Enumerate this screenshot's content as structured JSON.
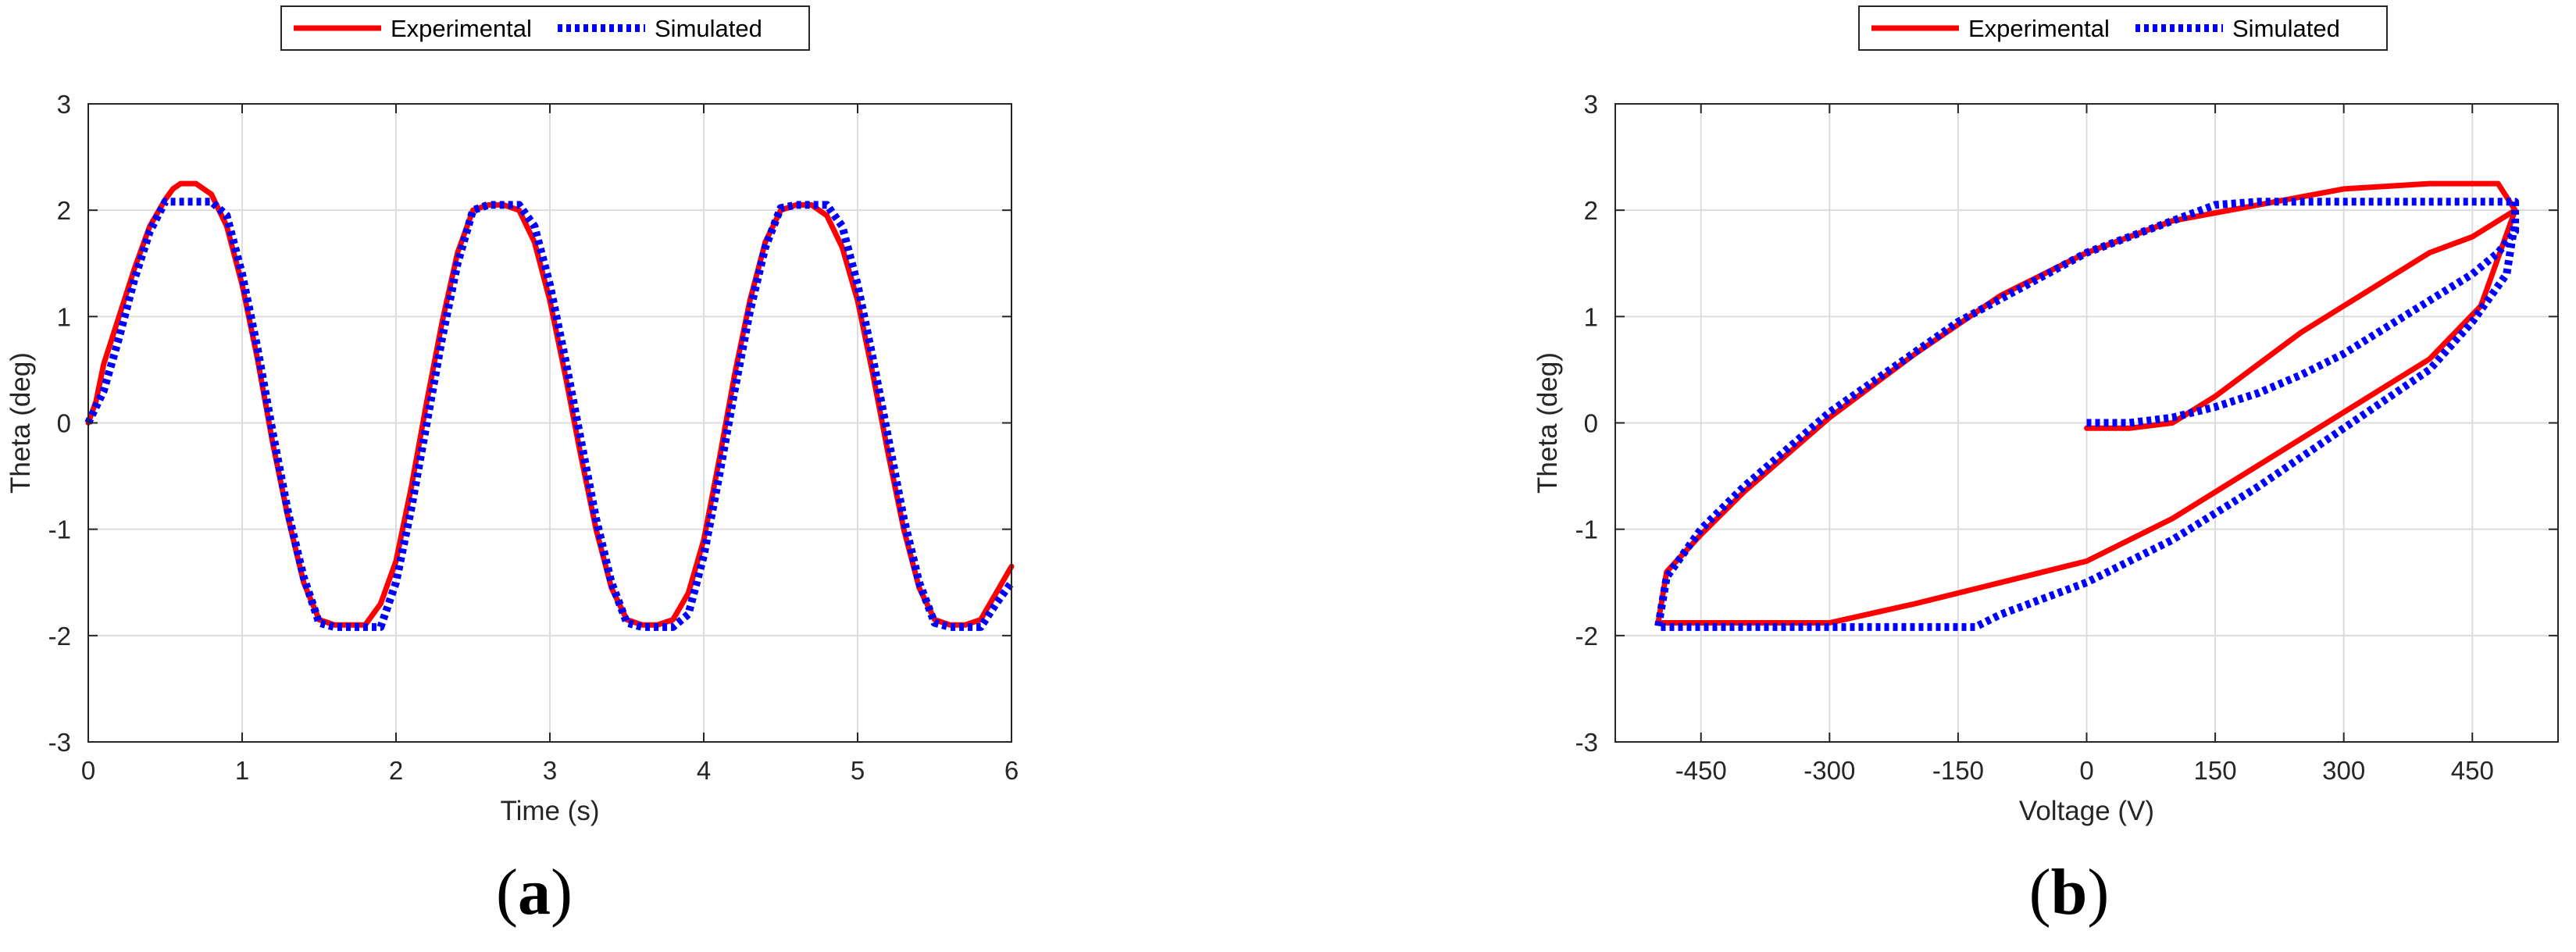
{
  "chart_data": [
    {
      "type": "line",
      "panel_label": {
        "open": "(",
        "letter": "a",
        "close": ")"
      },
      "xlabel": "Time (s)",
      "ylabel": "Theta (deg)",
      "xlim": [
        0,
        6
      ],
      "ylim": [
        -3,
        3
      ],
      "xticks": [
        0,
        1,
        2,
        3,
        4,
        5,
        6
      ],
      "yticks": [
        -3,
        -2,
        -1,
        0,
        1,
        2,
        3
      ],
      "grid": true,
      "legend": "top-center, outside",
      "series": [
        {
          "name": "Experimental",
          "color": "#ff0000",
          "style": "solid",
          "x": [
            0,
            0.05,
            0.1,
            0.2,
            0.3,
            0.4,
            0.5,
            0.55,
            0.6,
            0.7,
            0.8,
            0.9,
            1.0,
            1.1,
            1.2,
            1.3,
            1.4,
            1.5,
            1.6,
            1.7,
            1.8,
            1.9,
            2.0,
            2.1,
            2.2,
            2.3,
            2.4,
            2.5,
            2.6,
            2.7,
            2.8,
            2.9,
            3.0,
            3.1,
            3.2,
            3.3,
            3.4,
            3.5,
            3.6,
            3.7,
            3.8,
            3.9,
            4.0,
            4.1,
            4.2,
            4.3,
            4.4,
            4.5,
            4.6,
            4.7,
            4.8,
            4.9,
            5.0,
            5.1,
            5.2,
            5.3,
            5.4,
            5.5,
            5.6,
            5.7,
            5.8,
            5.9,
            6.0
          ],
          "y": [
            0,
            0.2,
            0.55,
            1.0,
            1.45,
            1.85,
            2.1,
            2.2,
            2.25,
            2.25,
            2.15,
            1.85,
            1.3,
            0.6,
            -0.2,
            -0.9,
            -1.5,
            -1.85,
            -1.9,
            -1.9,
            -1.9,
            -1.7,
            -1.3,
            -0.6,
            0.2,
            0.95,
            1.6,
            2.0,
            2.05,
            2.05,
            2.0,
            1.7,
            1.15,
            0.45,
            -0.3,
            -1.0,
            -1.55,
            -1.85,
            -1.9,
            -1.9,
            -1.85,
            -1.6,
            -1.1,
            -0.35,
            0.45,
            1.15,
            1.7,
            2.0,
            2.05,
            2.05,
            1.95,
            1.65,
            1.15,
            0.45,
            -0.3,
            -1.0,
            -1.55,
            -1.85,
            -1.9,
            -1.9,
            -1.85,
            -1.6,
            -1.35
          ]
        },
        {
          "name": "Simulated",
          "color": "#0000ff",
          "style": "dotted",
          "x": [
            0,
            0.1,
            0.2,
            0.3,
            0.4,
            0.5,
            0.6,
            0.7,
            0.8,
            0.9,
            1.0,
            1.1,
            1.2,
            1.3,
            1.4,
            1.5,
            1.6,
            1.7,
            1.8,
            1.9,
            2.0,
            2.1,
            2.2,
            2.3,
            2.4,
            2.5,
            2.6,
            2.7,
            2.8,
            2.9,
            3.0,
            3.1,
            3.2,
            3.3,
            3.4,
            3.5,
            3.6,
            3.7,
            3.8,
            3.9,
            4.0,
            4.1,
            4.2,
            4.3,
            4.4,
            4.5,
            4.6,
            4.7,
            4.8,
            4.9,
            5.0,
            5.1,
            5.2,
            5.3,
            5.4,
            5.5,
            5.6,
            5.7,
            5.8,
            5.9,
            6.0
          ],
          "y": [
            0,
            0.3,
            0.8,
            1.35,
            1.8,
            2.08,
            2.08,
            2.08,
            2.08,
            1.95,
            1.4,
            0.7,
            -0.1,
            -0.85,
            -1.45,
            -1.88,
            -1.92,
            -1.92,
            -1.92,
            -1.92,
            -1.5,
            -0.8,
            0.0,
            0.8,
            1.5,
            2.0,
            2.05,
            2.05,
            2.05,
            1.85,
            1.3,
            0.6,
            -0.15,
            -0.9,
            -1.5,
            -1.88,
            -1.92,
            -1.92,
            -1.92,
            -1.8,
            -1.25,
            -0.5,
            0.3,
            1.05,
            1.65,
            2.02,
            2.05,
            2.05,
            2.05,
            1.85,
            1.3,
            0.6,
            -0.15,
            -0.9,
            -1.5,
            -1.88,
            -1.92,
            -1.92,
            -1.92,
            -1.7,
            -1.5
          ]
        }
      ]
    },
    {
      "type": "line",
      "panel_label": {
        "open": "(",
        "letter": "b",
        "close": ")"
      },
      "xlabel": "Voltage (V)",
      "ylabel": "Theta (deg)",
      "xlim": [
        -550,
        550
      ],
      "ylim": [
        -3,
        3
      ],
      "xticks": [
        -450,
        -300,
        -150,
        0,
        150,
        300,
        450
      ],
      "yticks": [
        -3,
        -2,
        -1,
        0,
        1,
        2,
        3
      ],
      "grid": true,
      "legend": "top-center, outside",
      "series": [
        {
          "name": "Experimental",
          "color": "#ff0000",
          "style": "solid",
          "x": [
            0,
            50,
            100,
            150,
            200,
            250,
            300,
            350,
            400,
            450,
            480,
            500,
            480,
            400,
            300,
            200,
            100,
            0,
            -100,
            -200,
            -300,
            -400,
            -450,
            -490,
            -500,
            -490,
            -400,
            -300,
            -200,
            -100,
            0,
            100,
            200,
            300,
            400,
            460,
            500
          ],
          "y": [
            -0.05,
            -0.05,
            0.0,
            0.25,
            0.55,
            0.85,
            1.1,
            1.35,
            1.6,
            1.75,
            1.9,
            2.0,
            2.25,
            2.25,
            2.2,
            2.05,
            1.9,
            1.6,
            1.2,
            0.65,
            0.05,
            -0.65,
            -1.05,
            -1.4,
            -1.88,
            -1.88,
            -1.88,
            -1.88,
            -1.7,
            -1.5,
            -1.3,
            -0.9,
            -0.4,
            0.1,
            0.6,
            1.1,
            2.0
          ]
        },
        {
          "name": "Simulated",
          "color": "#0000ff",
          "style": "dotted",
          "x": [
            0,
            50,
            100,
            150,
            200,
            250,
            300,
            350,
            400,
            450,
            480,
            500,
            500,
            450,
            400,
            300,
            200,
            150,
            0,
            -150,
            -300,
            -400,
            -450,
            -490,
            -500,
            -400,
            -300,
            -200,
            -130,
            -100,
            0,
            100,
            200,
            300,
            400,
            450,
            490,
            500
          ],
          "y": [
            0,
            0.0,
            0.05,
            0.15,
            0.28,
            0.45,
            0.65,
            0.9,
            1.15,
            1.4,
            1.6,
            1.8,
            2.08,
            2.08,
            2.08,
            2.08,
            2.08,
            2.05,
            1.6,
            0.95,
            0.1,
            -0.6,
            -1.0,
            -1.45,
            -1.92,
            -1.92,
            -1.92,
            -1.92,
            -1.92,
            -1.8,
            -1.5,
            -1.1,
            -0.6,
            -0.05,
            0.5,
            0.95,
            1.4,
            1.9
          ]
        }
      ]
    }
  ]
}
